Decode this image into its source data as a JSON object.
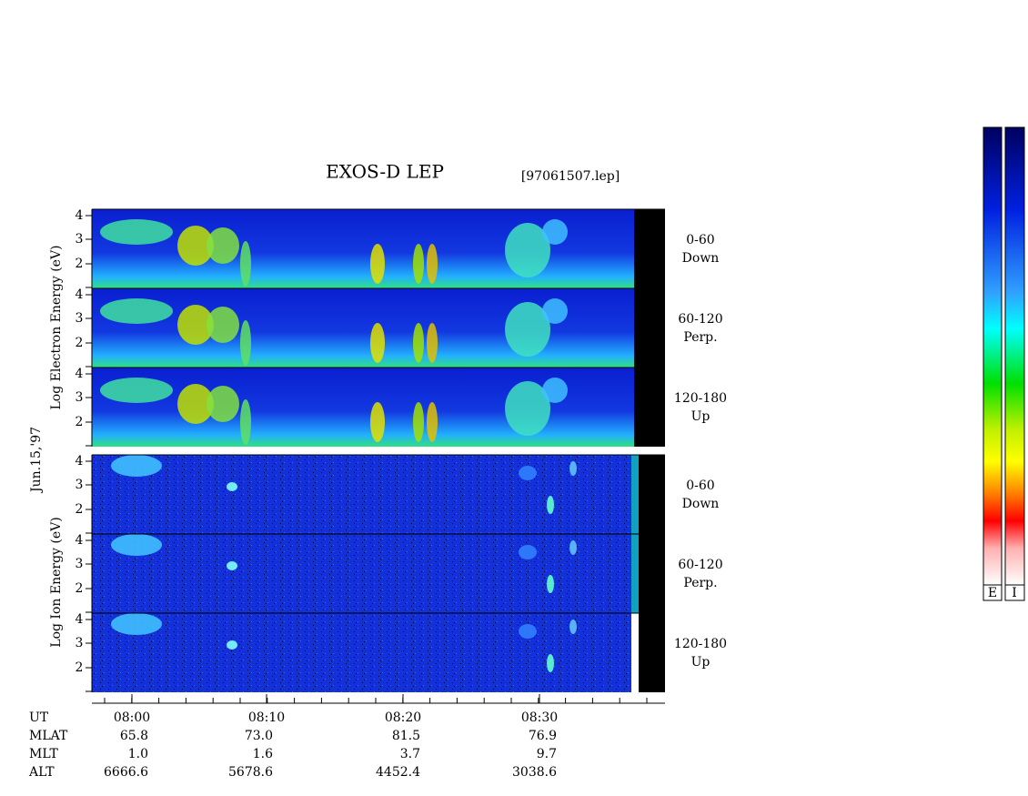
{
  "header": {
    "title": "EXOS-D LEP",
    "file": "[97061507.lep]"
  },
  "date": "Jun.15,'97",
  "electron": {
    "axis_label": "Log Electron Energy (eV)",
    "panels": [
      {
        "ticks": [
          "2",
          "3",
          "4"
        ],
        "label": [
          "0-60",
          "Down"
        ]
      },
      {
        "ticks": [
          "2",
          "3",
          "4"
        ],
        "label": [
          "60-120",
          "Perp."
        ]
      },
      {
        "ticks": [
          "2",
          "3",
          "4"
        ],
        "label": [
          "120-180",
          "Up"
        ]
      }
    ]
  },
  "ion": {
    "axis_label": "Log Ion Energy (eV)",
    "panels": [
      {
        "ticks": [
          "2",
          "3",
          "4"
        ],
        "label": [
          "0-60",
          "Down"
        ]
      },
      {
        "ticks": [
          "2",
          "3",
          "4"
        ],
        "label": [
          "60-120",
          "Perp."
        ]
      },
      {
        "ticks": [
          "2",
          "3",
          "4"
        ],
        "label": [
          "120-180",
          "Up"
        ]
      }
    ]
  },
  "colorbars": [
    "E",
    "I"
  ],
  "footer": {
    "rows": [
      {
        "label": "UT",
        "values": [
          "08:00",
          "08:10",
          "08:20",
          "08:30"
        ]
      },
      {
        "label": "MLAT",
        "values": [
          "65.8",
          "73.0",
          "81.5",
          "76.9"
        ]
      },
      {
        "label": "MLT",
        "values": [
          "1.0",
          "1.6",
          "3.7",
          "9.7"
        ]
      },
      {
        "label": "ALT",
        "values": [
          "6666.6",
          "5678.6",
          "4452.4",
          "3038.6"
        ]
      }
    ]
  }
}
